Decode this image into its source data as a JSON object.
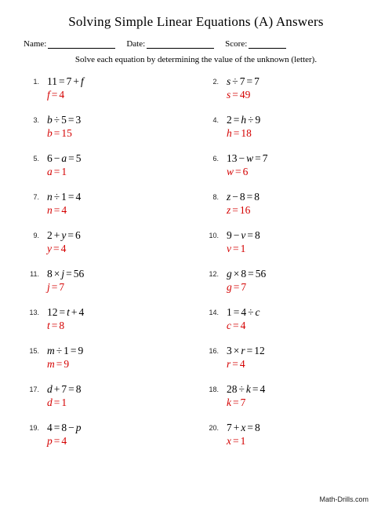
{
  "title": "Solving Simple Linear Equations (A) Answers",
  "header": {
    "name_label": "Name:",
    "date_label": "Date:",
    "score_label": "Score:",
    "name_line_width": 86,
    "date_line_width": 86,
    "score_line_width": 48
  },
  "instruction": "Solve each equation by determining the value of the unknown (letter).",
  "answer_color": "#d40000",
  "text_color": "#000000",
  "background_color": "#ffffff",
  "problems": [
    {
      "n": "1.",
      "lhs": "11",
      "op": "=",
      "rhs_a": "7",
      "rhs_op": "+",
      "rhs_b": "f",
      "var": "f",
      "val": "4"
    },
    {
      "n": "2.",
      "lhs_a": "s",
      "lhs_op": "÷",
      "lhs_b": "7",
      "op": "=",
      "rhs": "7",
      "var": "s",
      "val": "49"
    },
    {
      "n": "3.",
      "lhs_a": "b",
      "lhs_op": "÷",
      "lhs_b": "5",
      "op": "=",
      "rhs": "3",
      "var": "b",
      "val": "15"
    },
    {
      "n": "4.",
      "lhs": "2",
      "op": "=",
      "rhs_a": "h",
      "rhs_op": "÷",
      "rhs_b": "9",
      "var": "h",
      "val": "18"
    },
    {
      "n": "5.",
      "lhs_a": "6",
      "lhs_op": "−",
      "lhs_b": "a",
      "op": "=",
      "rhs": "5",
      "var": "a",
      "val": "1"
    },
    {
      "n": "6.",
      "lhs_a": "13",
      "lhs_op": "−",
      "lhs_b": "w",
      "op": "=",
      "rhs": "7",
      "var": "w",
      "val": "6"
    },
    {
      "n": "7.",
      "lhs_a": "n",
      "lhs_op": "÷",
      "lhs_b": "1",
      "op": "=",
      "rhs": "4",
      "var": "n",
      "val": "4"
    },
    {
      "n": "8.",
      "lhs_a": "z",
      "lhs_op": "−",
      "lhs_b": "8",
      "op": "=",
      "rhs": "8",
      "var": "z",
      "val": "16"
    },
    {
      "n": "9.",
      "lhs_a": "2",
      "lhs_op": "+",
      "lhs_b": "y",
      "op": "=",
      "rhs": "6",
      "var": "y",
      "val": "4"
    },
    {
      "n": "10.",
      "lhs_a": "9",
      "lhs_op": "−",
      "lhs_b": "v",
      "op": "=",
      "rhs": "8",
      "var": "v",
      "val": "1"
    },
    {
      "n": "11.",
      "lhs_a": "8",
      "lhs_op": "×",
      "lhs_b": "j",
      "op": "=",
      "rhs": "56",
      "var": "j",
      "val": "7"
    },
    {
      "n": "12.",
      "lhs_a": "g",
      "lhs_op": "×",
      "lhs_b": "8",
      "op": "=",
      "rhs": "56",
      "var": "g",
      "val": "7"
    },
    {
      "n": "13.",
      "lhs": "12",
      "op": "=",
      "rhs_a": "t",
      "rhs_op": "+",
      "rhs_b": "4",
      "var": "t",
      "val": "8"
    },
    {
      "n": "14.",
      "lhs": "1",
      "op": "=",
      "rhs_a": "4",
      "rhs_op": "÷",
      "rhs_b": "c",
      "var": "c",
      "val": "4"
    },
    {
      "n": "15.",
      "lhs_a": "m",
      "lhs_op": "÷",
      "lhs_b": "1",
      "op": "=",
      "rhs": "9",
      "var": "m",
      "val": "9"
    },
    {
      "n": "16.",
      "lhs_a": "3",
      "lhs_op": "×",
      "lhs_b": "r",
      "op": "=",
      "rhs": "12",
      "var": "r",
      "val": "4"
    },
    {
      "n": "17.",
      "lhs_a": "d",
      "lhs_op": "+",
      "lhs_b": "7",
      "op": "=",
      "rhs": "8",
      "var": "d",
      "val": "1"
    },
    {
      "n": "18.",
      "lhs_a": "28",
      "lhs_op": "÷",
      "lhs_b": "k",
      "op": "=",
      "rhs": "4",
      "var": "k",
      "val": "7"
    },
    {
      "n": "19.",
      "lhs": "4",
      "op": "=",
      "rhs_a": "8",
      "rhs_op": "−",
      "rhs_b": "p",
      "var": "p",
      "val": "4"
    },
    {
      "n": "20.",
      "lhs_a": "7",
      "lhs_op": "+",
      "lhs_b": "x",
      "op": "=",
      "rhs": "8",
      "var": "x",
      "val": "1"
    }
  ],
  "footer": "Math-Drills.com"
}
